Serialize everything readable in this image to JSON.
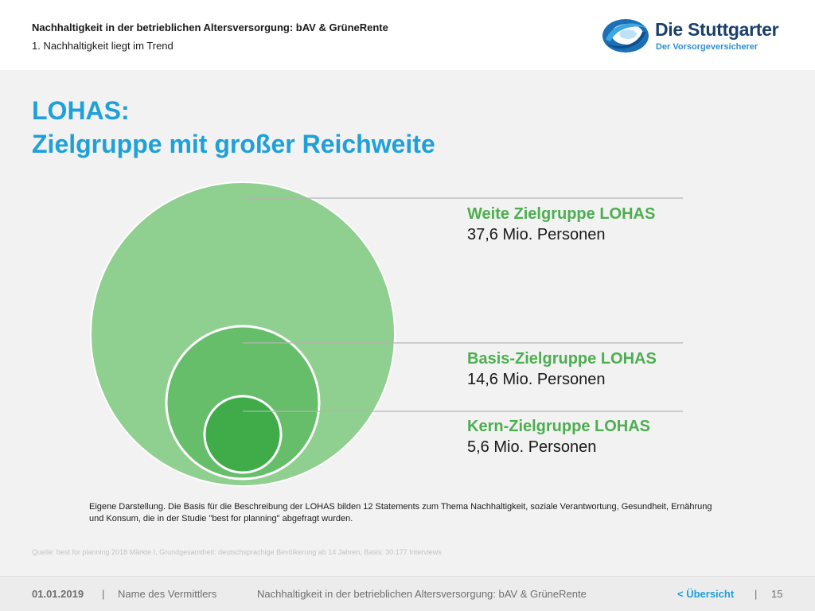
{
  "header": {
    "title": "Nachhaltigkeit in der betrieblichen Altersversorgung: bAV & GrüneRente",
    "subtitle": "1. Nachhaltigkeit liegt im Trend"
  },
  "logo": {
    "name": "Die Stuttgarter",
    "tagline": "Der Vorsorgeversicherer"
  },
  "slide": {
    "title_line1": "LOHAS:",
    "title_line2": "Zielgruppe mit großer Reichweite"
  },
  "tiers": [
    {
      "name": "Weite Zielgruppe LOHAS",
      "value": "37,6 Mio. Personen",
      "millions": 37.6,
      "color": "#8fcf8f"
    },
    {
      "name": "Basis-Zielgruppe LOHAS",
      "value": "14,6 Mio. Personen",
      "millions": 14.6,
      "color": "#66bd6a"
    },
    {
      "name": "Kern-Zielgruppe LOHAS",
      "value": "5,6 Mio. Personen",
      "millions": 5.6,
      "color": "#3fab49"
    }
  ],
  "note": "Eigene Darstellung. Die Basis für die Beschreibung der LOHAS bilden 12 Statements zum Thema Nachhaltigkeit, soziale Verantwortung, Gesundheit, Ernährung und Konsum, die in der Studie \"best for planning\" abgefragt wurden.",
  "source": "Quelle: best for planning 2018 Märkte I, Grundgesamtheit: deutschsprachige Bevölkerung ab 14 Jahren, Basis: 30.177 Interviews",
  "footer": {
    "date": "01.01.2019",
    "separator": "|",
    "agent": "Name des Vermittlers",
    "title": "Nachhaltigkeit in der betrieblichen Altersversorgung: bAV & GrüneRente",
    "overview": "< Übersicht",
    "page": "15"
  },
  "colors": {
    "accent_blue": "#1ea0d8",
    "green_label": "#4dae50",
    "logo_navy": "#1b3f6b"
  }
}
